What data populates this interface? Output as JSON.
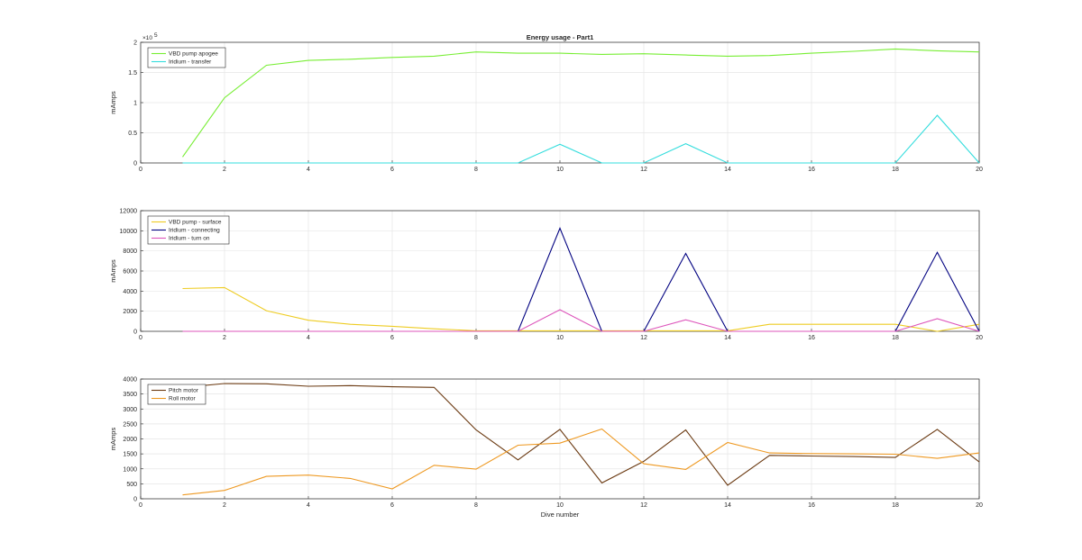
{
  "title": "Energy usage - Part1",
  "chart_data": [
    {
      "type": "line",
      "title": "Energy usage - Part1",
      "xlabel": "",
      "ylabel": "mAmps",
      "xlim": [
        0,
        20
      ],
      "ylim": [
        0,
        2
      ],
      "xticks": [
        "0",
        "2",
        "4",
        "6",
        "8",
        "10",
        "12",
        "14",
        "16",
        "18",
        "20"
      ],
      "yticks": [
        "0",
        "0.5",
        "1",
        "1.5",
        "2"
      ],
      "y_exponent_label": "×10",
      "y_exponent_power": "5",
      "grid": true,
      "legend": "top-left",
      "x": [
        1,
        2,
        3,
        4,
        5,
        6,
        7,
        8,
        9,
        10,
        11,
        12,
        13,
        14,
        15,
        16,
        17,
        18,
        19,
        20
      ],
      "series": [
        {
          "name": "VBD pump apogee",
          "color": "#77ee33",
          "values": [
            0.1,
            1.08,
            1.62,
            1.7,
            1.72,
            1.75,
            1.77,
            1.84,
            1.82,
            1.82,
            1.8,
            1.81,
            1.79,
            1.77,
            1.78,
            1.82,
            1.85,
            1.89,
            1.86,
            1.84
          ]
        },
        {
          "name": "Iridium - transfer",
          "color": "#33dddd",
          "values": [
            0,
            0,
            0,
            0,
            0,
            0,
            0,
            0,
            0,
            0.31,
            0,
            0,
            0.32,
            0,
            0,
            0,
            0,
            0,
            0.79,
            0
          ]
        }
      ]
    },
    {
      "type": "line",
      "xlabel": "",
      "ylabel": "mAmps",
      "xlim": [
        0,
        20
      ],
      "ylim": [
        0,
        12000
      ],
      "xticks": [
        "0",
        "2",
        "4",
        "6",
        "8",
        "10",
        "12",
        "14",
        "16",
        "18",
        "20"
      ],
      "yticks": [
        "0",
        "2000",
        "4000",
        "6000",
        "8000",
        "10000",
        "12000"
      ],
      "grid": true,
      "legend": "top-left",
      "x": [
        1,
        2,
        3,
        4,
        5,
        6,
        7,
        8,
        9,
        10,
        11,
        12,
        13,
        14,
        15,
        16,
        17,
        18,
        19,
        20
      ],
      "series": [
        {
          "name": "VBD pump - surface",
          "color": "#eecc22",
          "values": [
            4250,
            4350,
            2050,
            1100,
            700,
            500,
            250,
            50,
            50,
            50,
            50,
            50,
            50,
            50,
            700,
            700,
            700,
            700,
            0,
            700
          ]
        },
        {
          "name": "Iridium - connecting",
          "color": "#000080",
          "values": [
            0,
            0,
            0,
            0,
            0,
            0,
            0,
            0,
            0,
            10250,
            0,
            0,
            7750,
            0,
            0,
            0,
            0,
            0,
            7850,
            0
          ]
        },
        {
          "name": "Iridium - turn on",
          "color": "#dd55bb",
          "values": [
            0,
            0,
            0,
            0,
            0,
            0,
            0,
            0,
            0,
            2150,
            0,
            0,
            1150,
            0,
            0,
            0,
            0,
            0,
            1250,
            0
          ]
        }
      ]
    },
    {
      "type": "line",
      "xlabel": "Dive number",
      "ylabel": "mAmps",
      "xlim": [
        0,
        20
      ],
      "ylim": [
        0,
        4000
      ],
      "xticks": [
        "0",
        "2",
        "4",
        "6",
        "8",
        "10",
        "12",
        "14",
        "16",
        "18",
        "20"
      ],
      "yticks": [
        "0",
        "500",
        "1000",
        "1500",
        "2000",
        "2500",
        "3000",
        "3500",
        "4000"
      ],
      "grid": true,
      "legend": "top-left",
      "x": [
        1,
        2,
        3,
        4,
        5,
        6,
        7,
        8,
        9,
        10,
        11,
        12,
        13,
        14,
        15,
        16,
        17,
        18,
        19,
        20
      ],
      "series": [
        {
          "name": "Pitch motor",
          "color": "#6b3a12",
          "values": [
            3720,
            3850,
            3840,
            3760,
            3780,
            3740,
            3720,
            2300,
            1300,
            2320,
            530,
            1250,
            2300,
            450,
            1450,
            1430,
            1410,
            1380,
            2320,
            1230
          ]
        },
        {
          "name": "Roll motor",
          "color": "#ee9922",
          "values": [
            130,
            280,
            750,
            790,
            680,
            330,
            1120,
            990,
            1790,
            1860,
            2330,
            1170,
            980,
            1880,
            1530,
            1510,
            1500,
            1490,
            1350,
            1530
          ]
        }
      ]
    }
  ]
}
